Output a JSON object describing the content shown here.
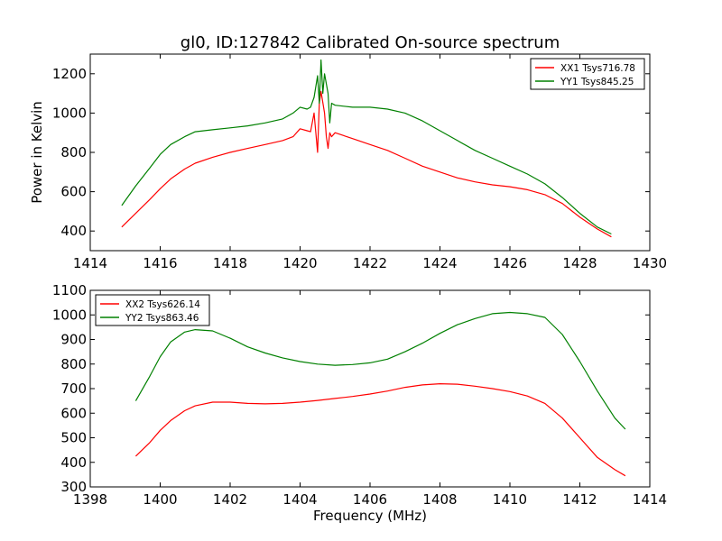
{
  "figure": {
    "title": "gl0, ID:127842 Calibrated On-source spectrum"
  },
  "chart_data": [
    {
      "type": "line",
      "title": "gl0, ID:127842 Calibrated On-source spectrum",
      "xlabel": "",
      "ylabel": "Power in Kelvin",
      "xlim": [
        1414,
        1430
      ],
      "ylim": [
        300,
        1300
      ],
      "xticks": [
        "1414",
        "1416",
        "1418",
        "1420",
        "1422",
        "1424",
        "1426",
        "1428",
        "1430"
      ],
      "yticks": [
        "400",
        "600",
        "800",
        "1000",
        "1200"
      ],
      "xtick_values": [
        1414,
        1416,
        1418,
        1420,
        1422,
        1424,
        1426,
        1428,
        1430
      ],
      "ytick_values": [
        400,
        600,
        800,
        1000,
        1200
      ],
      "legend": {
        "placement": "top-right"
      },
      "grid": false,
      "series": [
        {
          "name": "XX1 Tsys716.78",
          "color": "#ff0000",
          "x": [
            1414.9,
            1415.3,
            1415.7,
            1416.0,
            1416.3,
            1416.7,
            1417.0,
            1417.5,
            1418.0,
            1418.5,
            1419.0,
            1419.5,
            1419.8,
            1420.0,
            1420.2,
            1420.3,
            1420.4,
            1420.5,
            1420.55,
            1420.6,
            1420.7,
            1420.75,
            1420.8,
            1420.85,
            1420.9,
            1421.0,
            1421.5,
            1422.0,
            1422.5,
            1423.0,
            1423.5,
            1424.0,
            1424.5,
            1425.0,
            1425.5,
            1426.0,
            1426.5,
            1427.0,
            1427.5,
            1428.0,
            1428.5,
            1428.9
          ],
          "y": [
            420,
            490,
            560,
            615,
            665,
            715,
            745,
            775,
            800,
            820,
            840,
            860,
            880,
            920,
            910,
            905,
            1000,
            800,
            1050,
            1110,
            1000,
            880,
            820,
            900,
            880,
            900,
            870,
            840,
            810,
            770,
            730,
            700,
            670,
            650,
            635,
            625,
            610,
            585,
            540,
            470,
            410,
            370
          ]
        },
        {
          "name": "YY1 Tsys845.25",
          "color": "#008000",
          "x": [
            1414.9,
            1415.3,
            1415.7,
            1416.0,
            1416.3,
            1416.7,
            1417.0,
            1417.5,
            1418.0,
            1418.5,
            1419.0,
            1419.5,
            1419.8,
            1420.0,
            1420.2,
            1420.3,
            1420.4,
            1420.5,
            1420.55,
            1420.6,
            1420.65,
            1420.7,
            1420.8,
            1420.85,
            1420.9,
            1421.0,
            1421.5,
            1422.0,
            1422.5,
            1423.0,
            1423.5,
            1424.0,
            1424.5,
            1425.0,
            1425.5,
            1426.0,
            1426.5,
            1427.0,
            1427.5,
            1428.0,
            1428.5,
            1428.9
          ],
          "y": [
            530,
            630,
            720,
            790,
            840,
            880,
            905,
            915,
            925,
            935,
            950,
            970,
            1000,
            1030,
            1020,
            1030,
            1080,
            1190,
            1050,
            1270,
            1100,
            1200,
            1100,
            950,
            1050,
            1040,
            1030,
            1030,
            1020,
            1000,
            960,
            910,
            860,
            810,
            770,
            730,
            690,
            640,
            570,
            490,
            420,
            385
          ]
        }
      ]
    },
    {
      "type": "line",
      "title": "",
      "xlabel": "Frequency (MHz)",
      "ylabel": "",
      "xlim": [
        1398,
        1414
      ],
      "ylim": [
        300,
        1100
      ],
      "xticks": [
        "1398",
        "1400",
        "1402",
        "1404",
        "1406",
        "1408",
        "1410",
        "1412",
        "1414"
      ],
      "yticks": [
        "300",
        "400",
        "500",
        "600",
        "700",
        "800",
        "900",
        "1000",
        "1100"
      ],
      "xtick_values": [
        1398,
        1400,
        1402,
        1404,
        1406,
        1408,
        1410,
        1412,
        1414
      ],
      "ytick_values": [
        300,
        400,
        500,
        600,
        700,
        800,
        900,
        1000,
        1100
      ],
      "legend": {
        "placement": "top-left"
      },
      "grid": false,
      "series": [
        {
          "name": "XX2 Tsys626.14",
          "color": "#ff0000",
          "x": [
            1399.3,
            1399.7,
            1400.0,
            1400.3,
            1400.7,
            1401.0,
            1401.5,
            1402.0,
            1402.5,
            1403.0,
            1403.5,
            1404.0,
            1404.5,
            1405.0,
            1405.5,
            1406.0,
            1406.5,
            1407.0,
            1407.5,
            1408.0,
            1408.5,
            1409.0,
            1409.5,
            1410.0,
            1410.5,
            1411.0,
            1411.5,
            1412.0,
            1412.5,
            1413.0,
            1413.3
          ],
          "y": [
            425,
            480,
            530,
            570,
            610,
            630,
            645,
            645,
            640,
            638,
            640,
            645,
            652,
            660,
            668,
            678,
            690,
            705,
            715,
            720,
            718,
            710,
            700,
            688,
            670,
            640,
            580,
            500,
            420,
            370,
            345
          ]
        },
        {
          "name": "YY2 Tsys863.46",
          "color": "#008000",
          "x": [
            1399.3,
            1399.7,
            1400.0,
            1400.3,
            1400.7,
            1401.0,
            1401.5,
            1402.0,
            1402.5,
            1403.0,
            1403.5,
            1404.0,
            1404.5,
            1405.0,
            1405.5,
            1406.0,
            1406.5,
            1407.0,
            1407.5,
            1408.0,
            1408.5,
            1409.0,
            1409.5,
            1410.0,
            1410.5,
            1411.0,
            1411.5,
            1412.0,
            1412.5,
            1413.0,
            1413.3
          ],
          "y": [
            650,
            750,
            830,
            890,
            930,
            940,
            935,
            905,
            870,
            845,
            825,
            810,
            800,
            795,
            798,
            805,
            820,
            850,
            885,
            925,
            960,
            985,
            1005,
            1010,
            1005,
            990,
            920,
            810,
            690,
            580,
            535
          ]
        }
      ]
    }
  ]
}
